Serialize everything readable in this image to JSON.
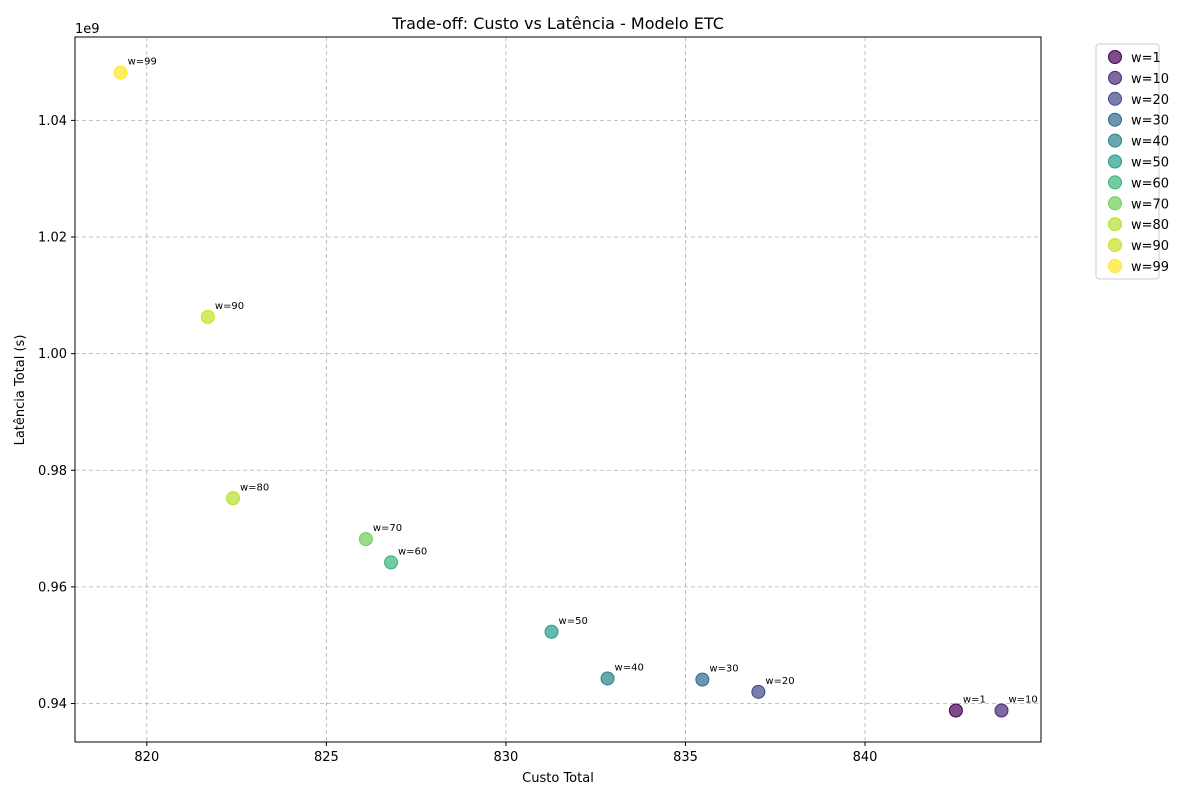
{
  "chart_data": {
    "type": "scatter",
    "title": "Trade-off: Custo vs Latência - Modelo ETC",
    "xlabel": "Custo Total",
    "ylabel": "Latência Total (s)",
    "y_offset_label": "1e9",
    "xlim": [
      818.0,
      844.9
    ],
    "ylim": [
      0.9334,
      1.0543
    ],
    "x_ticks": [
      820,
      825,
      830,
      835,
      840
    ],
    "x_tick_labels": [
      "820",
      "825",
      "830",
      "835",
      "840"
    ],
    "y_ticks": [
      0.94,
      0.96,
      0.98,
      1.0,
      1.02,
      1.04
    ],
    "y_tick_labels": [
      "0.94",
      "0.96",
      "0.98",
      "1.00",
      "1.02",
      "1.04"
    ],
    "grid": true,
    "legend_position": "outside-right-top",
    "series": [
      {
        "name": "w=1",
        "label": "w=1",
        "color": "#440154",
        "x": 842.53,
        "y": 0.9388
      },
      {
        "name": "w=10",
        "label": "w=10",
        "color": "#482878",
        "x": 843.8,
        "y": 0.9388
      },
      {
        "name": "w=20",
        "label": "w=20",
        "color": "#3e4989",
        "x": 837.03,
        "y": 0.942
      },
      {
        "name": "w=30",
        "label": "w=30",
        "color": "#31688e",
        "x": 835.47,
        "y": 0.9441
      },
      {
        "name": "w=40",
        "label": "w=40",
        "color": "#26828e",
        "x": 832.83,
        "y": 0.9443
      },
      {
        "name": "w=50",
        "label": "w=50",
        "color": "#1f9e89",
        "x": 831.27,
        "y": 0.9523
      },
      {
        "name": "w=60",
        "label": "w=60",
        "color": "#35b779",
        "x": 826.8,
        "y": 0.9642
      },
      {
        "name": "w=70",
        "label": "w=70",
        "color": "#6ece58",
        "x": 826.1,
        "y": 0.9682
      },
      {
        "name": "w=80",
        "label": "w=80",
        "color": "#b5de2b",
        "x": 822.4,
        "y": 0.9752
      },
      {
        "name": "w=90",
        "label": "w=90",
        "color": "#c8e020",
        "x": 821.7,
        "y": 1.0063
      },
      {
        "name": "w=99",
        "label": "w=99",
        "color": "#fde725",
        "x": 819.27,
        "y": 1.0482
      }
    ]
  }
}
